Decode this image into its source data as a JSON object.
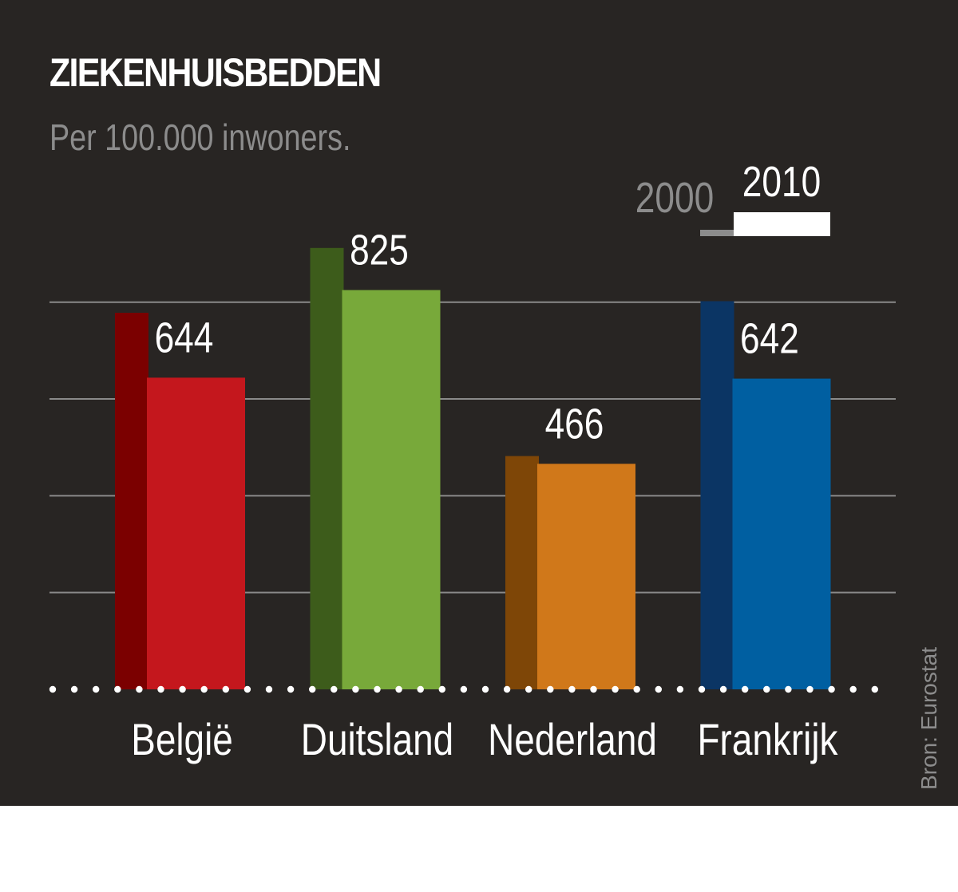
{
  "chart_data": {
    "type": "bar",
    "title": "ZIEKENHUISBEDDEN",
    "subtitle": "Per 100.000 inwoners.",
    "source": "Bron: Eurostat",
    "categories": [
      "België",
      "Duitsland",
      "Nederland",
      "Frankrijk"
    ],
    "series": [
      {
        "name": "2000",
        "values": [
          778,
          912,
          482,
          802
        ]
      },
      {
        "name": "2010",
        "values": [
          644,
          825,
          466,
          642
        ]
      }
    ],
    "colors": {
      "2000": [
        "#7b0000",
        "#3d5c1b",
        "#7e4607",
        "#0b3564"
      ],
      "2010": [
        "#c4171d",
        "#78a93a",
        "#d0781a",
        "#005fa1"
      ]
    },
    "legend": {
      "position": "top-right",
      "colors": {
        "2000": "#8c8c8c",
        "2010": "#ffffff"
      }
    },
    "ylim": [
      0,
      1000
    ],
    "grid": true,
    "gridlines": [
      200,
      400,
      600,
      800
    ],
    "xlabel": "",
    "ylabel": "",
    "data_labels": "2010"
  }
}
